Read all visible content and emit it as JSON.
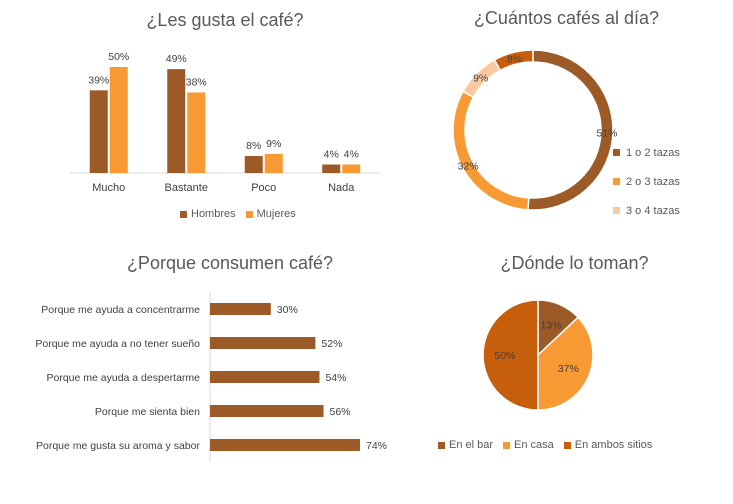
{
  "colors": {
    "dark": "#9C5A26",
    "orange": "#F79A33",
    "peach": "#FAC9A0",
    "burnt": "#C65E0B",
    "axis": "#D9D9D9",
    "text": "#595959"
  },
  "chart_data": [
    {
      "type": "bar",
      "title": "¿Les gusta el café?",
      "categories": [
        "Mucho",
        "Bastante",
        "Poco",
        "Nada"
      ],
      "series": [
        {
          "name": "Hombres",
          "values": [
            39,
            49,
            8,
            4
          ],
          "labels": [
            "39%",
            "49%",
            "8%",
            "4%"
          ],
          "color": "#9C5A26"
        },
        {
          "name": "Mujeres",
          "values": [
            50,
            38,
            9,
            4
          ],
          "labels": [
            "50%",
            "38%",
            "9%",
            "4%"
          ],
          "color": "#F79A33"
        }
      ],
      "ylim": [
        0,
        50
      ],
      "grid": false,
      "legend": "bottom"
    },
    {
      "type": "pie",
      "donut": true,
      "title": "¿Cuántos cafés al día?",
      "slices": [
        {
          "label": "1 o 2 tazas",
          "value": 51,
          "text": "51%",
          "color": "#9C5A26"
        },
        {
          "label": "2 o 3 tazas",
          "value": 32,
          "text": "32%",
          "color": "#F79A33"
        },
        {
          "label": "3 o 4 tazas",
          "value": 9,
          "text": "9%",
          "color": "#FAC9A0"
        },
        {
          "label": "",
          "value": 8,
          "text": "8%",
          "color": "#C65E0B"
        }
      ],
      "legend": "right"
    },
    {
      "type": "bar",
      "orientation": "horizontal",
      "title": "¿Porque consumen café?",
      "categories": [
        "Porque me ayuda a concentrarme",
        "Porque me ayuda a no tener sueño",
        "Porque me ayuda a despertarme",
        "Porque me sienta bien",
        "Porque me gusta su aroma y sabor"
      ],
      "values": [
        30,
        52,
        54,
        56,
        74
      ],
      "labels": [
        "30%",
        "52%",
        "54%",
        "56%",
        "74%"
      ],
      "color": "#9C5A26",
      "xlim": [
        0,
        74
      ],
      "grid": false
    },
    {
      "type": "pie",
      "title": "¿Dónde lo toman?",
      "slices": [
        {
          "label": "En el bar",
          "value": 13,
          "text": "13%",
          "color": "#9C5A26"
        },
        {
          "label": "En casa",
          "value": 37,
          "text": "37%",
          "color": "#F79A33"
        },
        {
          "label": "En ambos sitios",
          "value": 50,
          "text": "50%",
          "color": "#C65E0B"
        }
      ],
      "legend": "bottom"
    }
  ]
}
